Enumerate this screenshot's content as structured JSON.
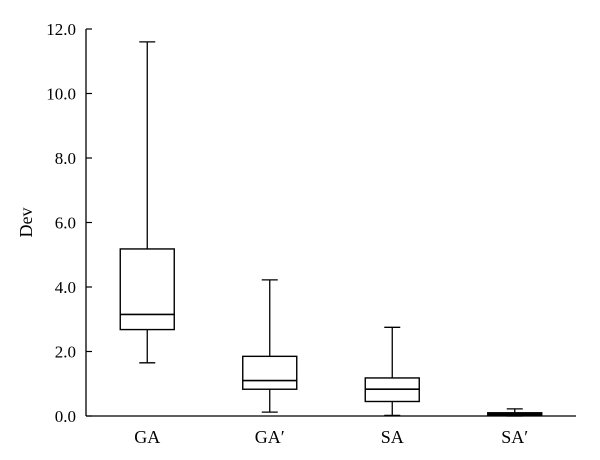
{
  "chart_data": {
    "type": "boxplot",
    "title": "",
    "xlabel": "",
    "ylabel": "Dev",
    "ylim": [
      0,
      12.0
    ],
    "yticks": [
      "0.0",
      "2.0",
      "4.0",
      "6.0",
      "8.0",
      "10.0",
      "12.0"
    ],
    "grid": false,
    "categories": [
      "GA",
      "GA′",
      "SA",
      "SA′"
    ],
    "boxes": [
      {
        "category": "GA",
        "min": 1.65,
        "q1": 2.68,
        "median": 3.15,
        "q3": 5.18,
        "max": 11.6
      },
      {
        "category": "GA′",
        "min": 0.12,
        "q1": 0.83,
        "median": 1.1,
        "q3": 1.85,
        "max": 4.22
      },
      {
        "category": "SA",
        "min": 0.02,
        "q1": 0.45,
        "median": 0.83,
        "q3": 1.18,
        "max": 2.75
      },
      {
        "category": "SA′",
        "min": 0.0,
        "q1": 0.03,
        "median": 0.06,
        "q3": 0.1,
        "max": 0.22
      }
    ]
  }
}
